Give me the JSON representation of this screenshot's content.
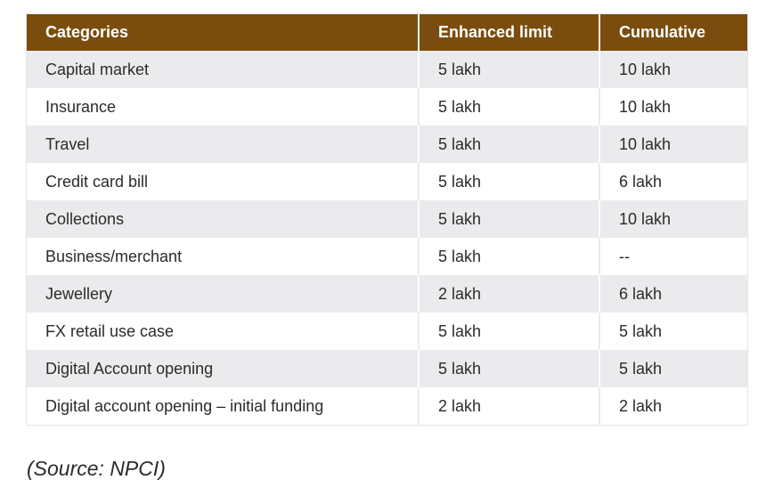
{
  "table": {
    "headers": [
      "Categories",
      "Enhanced limit",
      "Cumulative"
    ],
    "rows": [
      [
        "Capital market",
        "5 lakh",
        "10 lakh"
      ],
      [
        "Insurance",
        "5 lakh",
        "10 lakh"
      ],
      [
        "Travel",
        "5 lakh",
        "10 lakh"
      ],
      [
        "Credit card bill",
        "5 lakh",
        "6 lakh"
      ],
      [
        "Collections",
        "5 lakh",
        "10 lakh"
      ],
      [
        "Business/merchant",
        "5 lakh",
        "--"
      ],
      [
        "Jewellery",
        "2 lakh",
        "6 lakh"
      ],
      [
        "FX retail use case",
        "5 lakh",
        "5 lakh"
      ],
      [
        "Digital Account opening",
        "5 lakh",
        "5 lakh"
      ],
      [
        "Digital account opening – initial funding",
        "2 lakh",
        "2 lakh"
      ]
    ],
    "header_color": "#7a4d0e",
    "stripe_color": "#ebebee"
  },
  "source_note": "(Source: NPCI)"
}
